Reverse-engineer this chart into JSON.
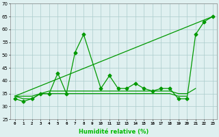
{
  "x": [
    0,
    1,
    2,
    3,
    4,
    5,
    6,
    7,
    8,
    9,
    10,
    11,
    12,
    13,
    14,
    15,
    16,
    17,
    18,
    19,
    20,
    21,
    22,
    23
  ],
  "series1": [
    33,
    32,
    33,
    35,
    35,
    43,
    35,
    51,
    58,
    null,
    37,
    42,
    37,
    37,
    39,
    37,
    36,
    37,
    37,
    33,
    33,
    58,
    63,
    65
  ],
  "series2": [
    34,
    33,
    33,
    35,
    35,
    35,
    35,
    35,
    35,
    35,
    35,
    35,
    35,
    35,
    35,
    35,
    35,
    35,
    35,
    34,
    34,
    null,
    null,
    null
  ],
  "series3": [
    34,
    34,
    34,
    35,
    36,
    36,
    36,
    36,
    36,
    36,
    36,
    36,
    36,
    36,
    36,
    36,
    36,
    36,
    36,
    35,
    35,
    37,
    null,
    null
  ],
  "series4_x": [
    0,
    23
  ],
  "series4_y": [
    34,
    65
  ],
  "bg_color": "#dff0f0",
  "grid_color": "#aacccc",
  "line_color": "#009900",
  "xlabel": "Humidité relative (%)",
  "ylim": [
    25,
    70
  ],
  "yticks": [
    25,
    30,
    35,
    40,
    45,
    50,
    55,
    60,
    65,
    70
  ],
  "xticks": [
    0,
    1,
    2,
    3,
    4,
    5,
    6,
    7,
    8,
    9,
    10,
    11,
    12,
    13,
    14,
    15,
    16,
    17,
    18,
    19,
    20,
    21,
    22,
    23
  ],
  "xlabel_color": "#00bb00"
}
